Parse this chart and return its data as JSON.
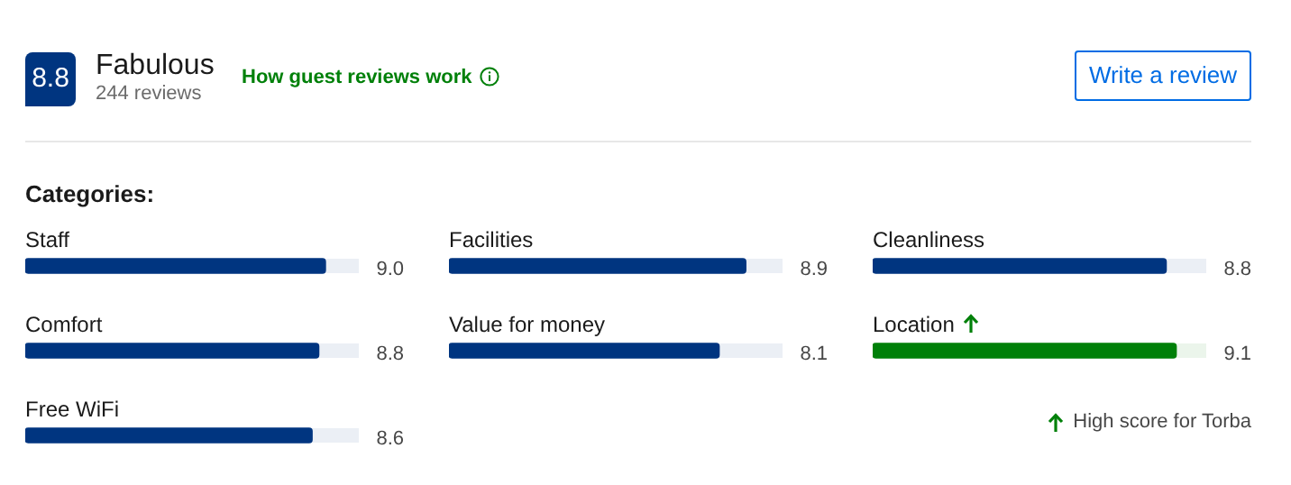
{
  "chart_data": [
    {
      "type": "other",
      "title": "Fabulous",
      "subtitle": "244 reviews",
      "annotations": [
        "8.8",
        "How guest reviews work",
        "Write a review",
        "Categories:"
      ]
    },
    {
      "type": "bar",
      "orientation": "horizontal",
      "categories": [
        "Staff",
        "Comfort",
        "Free WiFi"
      ],
      "values": [
        9.0,
        8.8,
        8.6
      ],
      "value_labels": [
        "9.0",
        "8.8",
        "8.6"
      ],
      "color": "#003580",
      "xlim": [
        0,
        10
      ]
    },
    {
      "type": "bar",
      "orientation": "horizontal",
      "categories": [
        "Facilities",
        "Value for money"
      ],
      "values": [
        8.9,
        8.1
      ],
      "value_labels": [
        "8.9",
        "8.1"
      ],
      "color": "#003580",
      "xlim": [
        0,
        10
      ]
    },
    {
      "type": "bar",
      "orientation": "horizontal",
      "categories": [
        "Cleanliness",
        "Location"
      ],
      "values": [
        8.8,
        9.1
      ],
      "value_labels": [
        "8.8",
        "9.1"
      ],
      "colors": [
        "#003580",
        "#008009"
      ],
      "xlim": [
        0,
        10
      ],
      "annotations": [
        "High score for Torba"
      ]
    }
  ]
}
